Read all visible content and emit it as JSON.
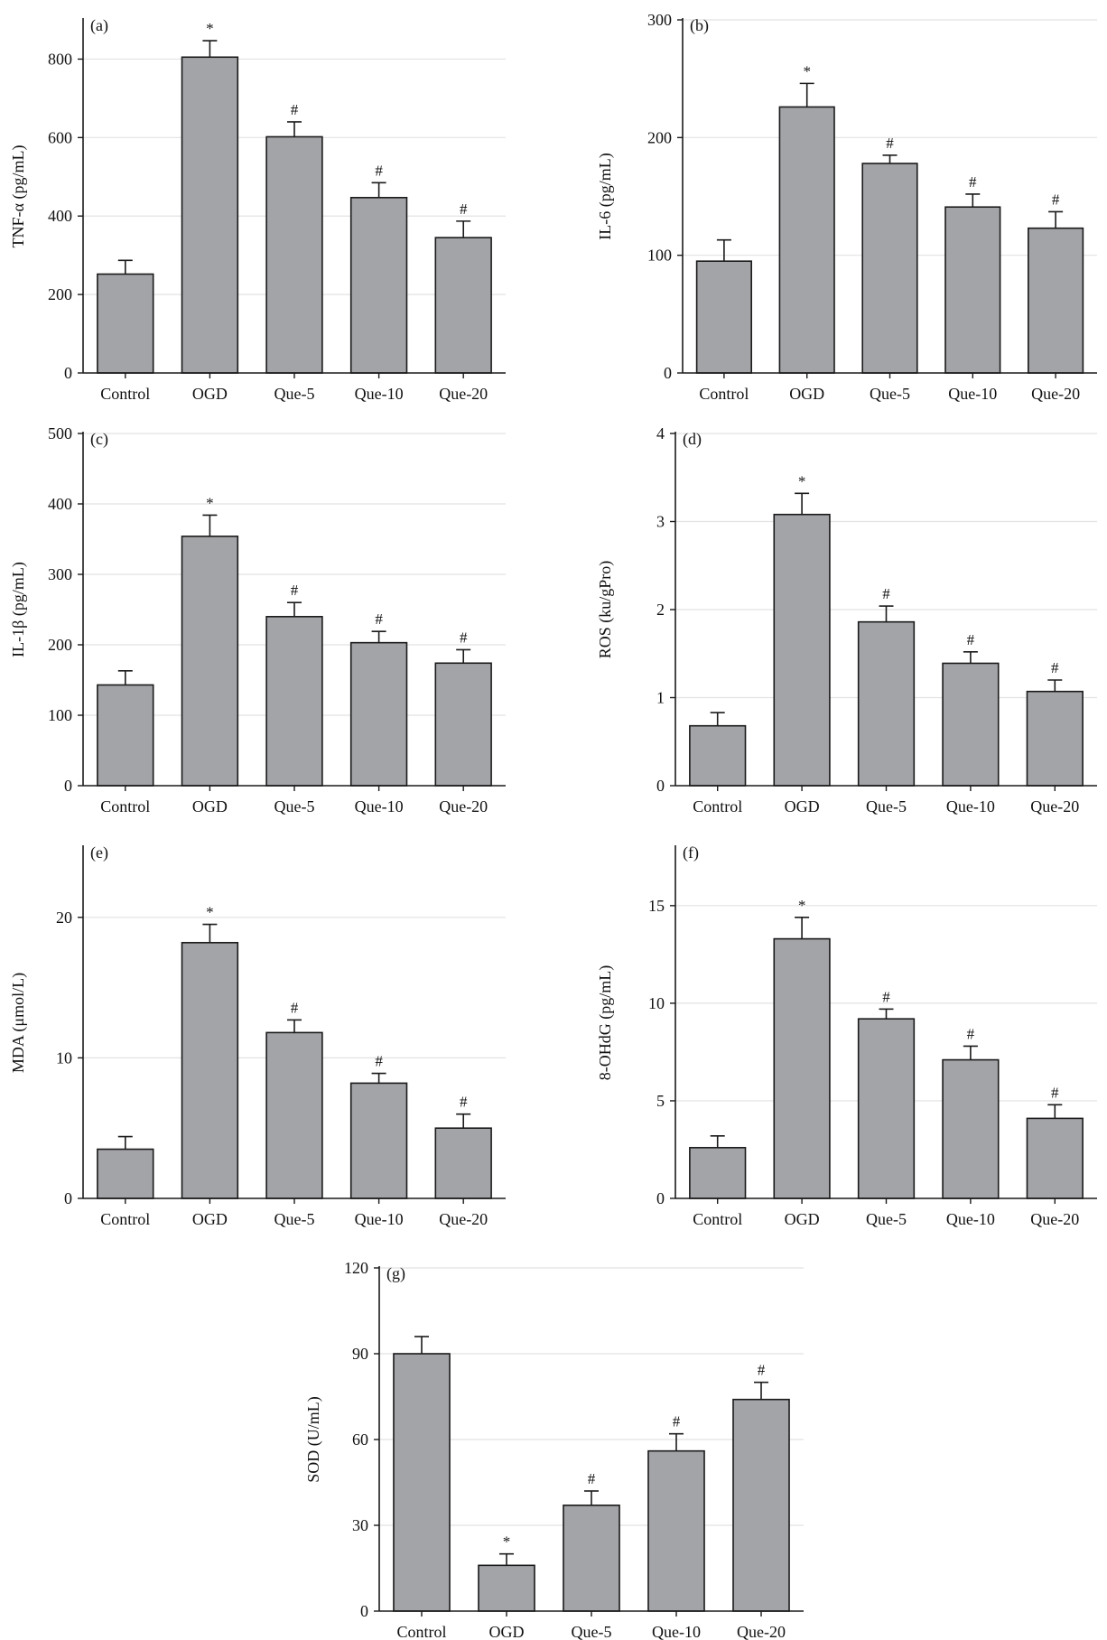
{
  "colors": {
    "bar_fill": "#a3a4a8",
    "bar_stroke": "#1a1a1a",
    "grid": "#e2e2e2",
    "axis": "#1a1a1a",
    "mark": "#333333"
  },
  "chart_data": [
    {
      "type": "bar",
      "panel": "(a)",
      "ylabel": "TNF-α (pg/mL)",
      "categories": [
        "Control",
        "OGD",
        "Que-5",
        "Que-10",
        "Que-20"
      ],
      "values": [
        252,
        805,
        602,
        447,
        345
      ],
      "errors": [
        35,
        42,
        38,
        38,
        42
      ],
      "marks": [
        "",
        "*",
        "#",
        "#",
        "#"
      ],
      "ylim": [
        0,
        900
      ],
      "yticks": [
        0,
        200,
        400,
        600,
        800
      ],
      "grid": true
    },
    {
      "type": "bar",
      "panel": "(b)",
      "ylabel": "IL-6 (pg/mL)",
      "categories": [
        "Control",
        "OGD",
        "Que-5",
        "Que-10",
        "Que-20"
      ],
      "values": [
        95,
        226,
        178,
        141,
        123
      ],
      "errors": [
        18,
        20,
        7,
        11,
        14
      ],
      "marks": [
        "",
        "*",
        "#",
        "#",
        "#"
      ],
      "ylim": [
        0,
        300
      ],
      "yticks": [
        0,
        100,
        200,
        300
      ],
      "grid": true
    },
    {
      "type": "bar",
      "panel": "(c)",
      "ylabel": "IL-1β (pg/mL)",
      "categories": [
        "Control",
        "OGD",
        "Que-5",
        "Que-10",
        "Que-20"
      ],
      "values": [
        143,
        354,
        240,
        203,
        174
      ],
      "errors": [
        20,
        30,
        20,
        16,
        19
      ],
      "marks": [
        "",
        "*",
        "#",
        "#",
        "#"
      ],
      "ylim": [
        0,
        500
      ],
      "yticks": [
        0,
        100,
        200,
        300,
        400,
        500
      ],
      "grid": true
    },
    {
      "type": "bar",
      "panel": "(d)",
      "ylabel": "ROS (ku/gPro)",
      "categories": [
        "Control",
        "OGD",
        "Que-5",
        "Que-10",
        "Que-20"
      ],
      "values": [
        0.68,
        3.08,
        1.86,
        1.39,
        1.07
      ],
      "errors": [
        0.15,
        0.24,
        0.18,
        0.13,
        0.13
      ],
      "marks": [
        "",
        "*",
        "#",
        "#",
        "#"
      ],
      "ylim": [
        0,
        4
      ],
      "yticks": [
        0,
        1,
        2,
        3,
        4
      ],
      "grid": true
    },
    {
      "type": "bar",
      "panel": "(e)",
      "ylabel": "MDA (μmol/L)",
      "categories": [
        "Control",
        "OGD",
        "Que-5",
        "Que-10",
        "Que-20"
      ],
      "values": [
        3.5,
        18.2,
        11.8,
        8.2,
        5.0
      ],
      "errors": [
        0.9,
        1.3,
        0.9,
        0.7,
        1.0
      ],
      "marks": [
        "",
        "*",
        "#",
        "#",
        "#"
      ],
      "ylim": [
        0,
        25
      ],
      "yticks": [
        0,
        10,
        20
      ],
      "grid": true
    },
    {
      "type": "bar",
      "panel": "(f)",
      "ylabel": "8-OHdG (pg/mL)",
      "categories": [
        "Control",
        "OGD",
        "Que-5",
        "Que-10",
        "Que-20"
      ],
      "values": [
        2.6,
        13.3,
        9.2,
        7.1,
        4.1
      ],
      "errors": [
        0.6,
        1.1,
        0.5,
        0.7,
        0.7
      ],
      "marks": [
        "",
        "*",
        "#",
        "#",
        "#"
      ],
      "ylim": [
        0,
        18
      ],
      "yticks": [
        0,
        5,
        10,
        15
      ],
      "grid": true
    },
    {
      "type": "bar",
      "panel": "(g)",
      "ylabel": "SOD (U/mL)",
      "categories": [
        "Control",
        "OGD",
        "Que-5",
        "Que-10",
        "Que-20"
      ],
      "values": [
        90,
        16,
        37,
        56,
        74
      ],
      "errors": [
        6,
        4,
        5,
        6,
        6
      ],
      "marks": [
        "",
        "*",
        "#",
        "#",
        "#"
      ],
      "ylim": [
        0,
        120
      ],
      "yticks": [
        0,
        30,
        60,
        90,
        120
      ],
      "grid": true
    }
  ]
}
